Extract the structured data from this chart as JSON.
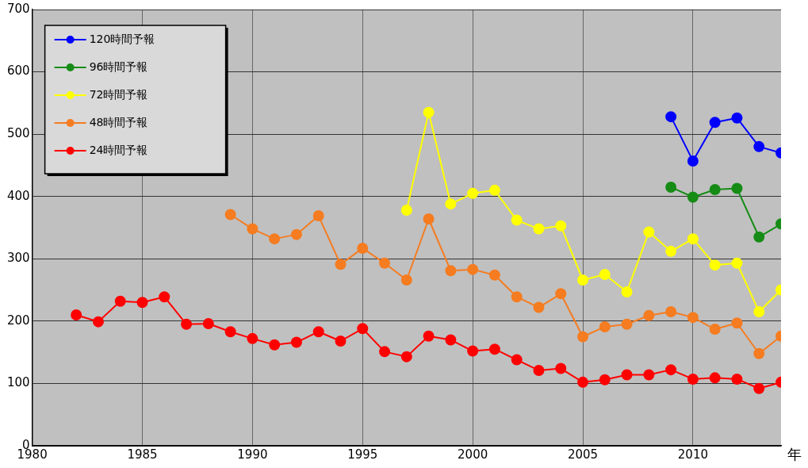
{
  "chart_data": {
    "type": "line",
    "xlabel": "年",
    "xlim": [
      1980,
      2014
    ],
    "xticks": [
      1980,
      1985,
      1990,
      1995,
      2000,
      2005,
      2010
    ],
    "ylim": [
      0,
      700
    ],
    "yticks": [
      0,
      100,
      200,
      300,
      400,
      500,
      600,
      700
    ],
    "grid": true,
    "legend": "top left",
    "marker": "circle",
    "line_style": "solid",
    "series": [
      {
        "name": "120時間予報",
        "color": "#0000ff",
        "x": [
          2009,
          2010,
          2011,
          2012,
          2013,
          2014
        ],
        "values": [
          528,
          457,
          519,
          526,
          480,
          470
        ]
      },
      {
        "name": "96時間予報",
        "color": "#168c16",
        "x": [
          2009,
          2010,
          2011,
          2012,
          2013,
          2014
        ],
        "values": [
          415,
          399,
          411,
          413,
          335,
          356
        ]
      },
      {
        "name": "72時間予報",
        "color": "#ffff00",
        "x": [
          1997,
          1998,
          1999,
          2000,
          2001,
          2002,
          2003,
          2004,
          2005,
          2006,
          2007,
          2008,
          2009,
          2010,
          2011,
          2012,
          2013,
          2014
        ],
        "values": [
          378,
          535,
          388,
          405,
          410,
          362,
          348,
          353,
          266,
          275,
          247,
          343,
          312,
          332,
          290,
          293,
          215,
          250
        ]
      },
      {
        "name": "48時間予報",
        "color": "#f57c20",
        "x": [
          1989,
          1990,
          1991,
          1992,
          1993,
          1994,
          1995,
          1996,
          1997,
          1998,
          1999,
          2000,
          2001,
          2002,
          2003,
          2004,
          2005,
          2006,
          2007,
          2008,
          2009,
          2010,
          2011,
          2012,
          2013,
          2014
        ],
        "values": [
          371,
          348,
          332,
          339,
          369,
          291,
          317,
          293,
          266,
          364,
          281,
          283,
          274,
          239,
          222,
          244,
          175,
          191,
          195,
          209,
          215,
          206,
          187,
          197,
          148,
          176
        ]
      },
      {
        "name": "24時間予報",
        "color": "#ff0000",
        "x": [
          1982,
          1983,
          1984,
          1985,
          1986,
          1987,
          1988,
          1989,
          1990,
          1991,
          1992,
          1993,
          1994,
          1995,
          1996,
          1997,
          1998,
          1999,
          2000,
          2001,
          2002,
          2003,
          2004,
          2005,
          2006,
          2007,
          2008,
          2009,
          2010,
          2011,
          2012,
          2013,
          2014
        ],
        "values": [
          210,
          199,
          232,
          230,
          239,
          195,
          196,
          183,
          172,
          162,
          166,
          183,
          168,
          188,
          151,
          143,
          176,
          170,
          152,
          155,
          138,
          121,
          124,
          102,
          106,
          114,
          114,
          122,
          107,
          109,
          107,
          92,
          102
        ]
      }
    ]
  }
}
